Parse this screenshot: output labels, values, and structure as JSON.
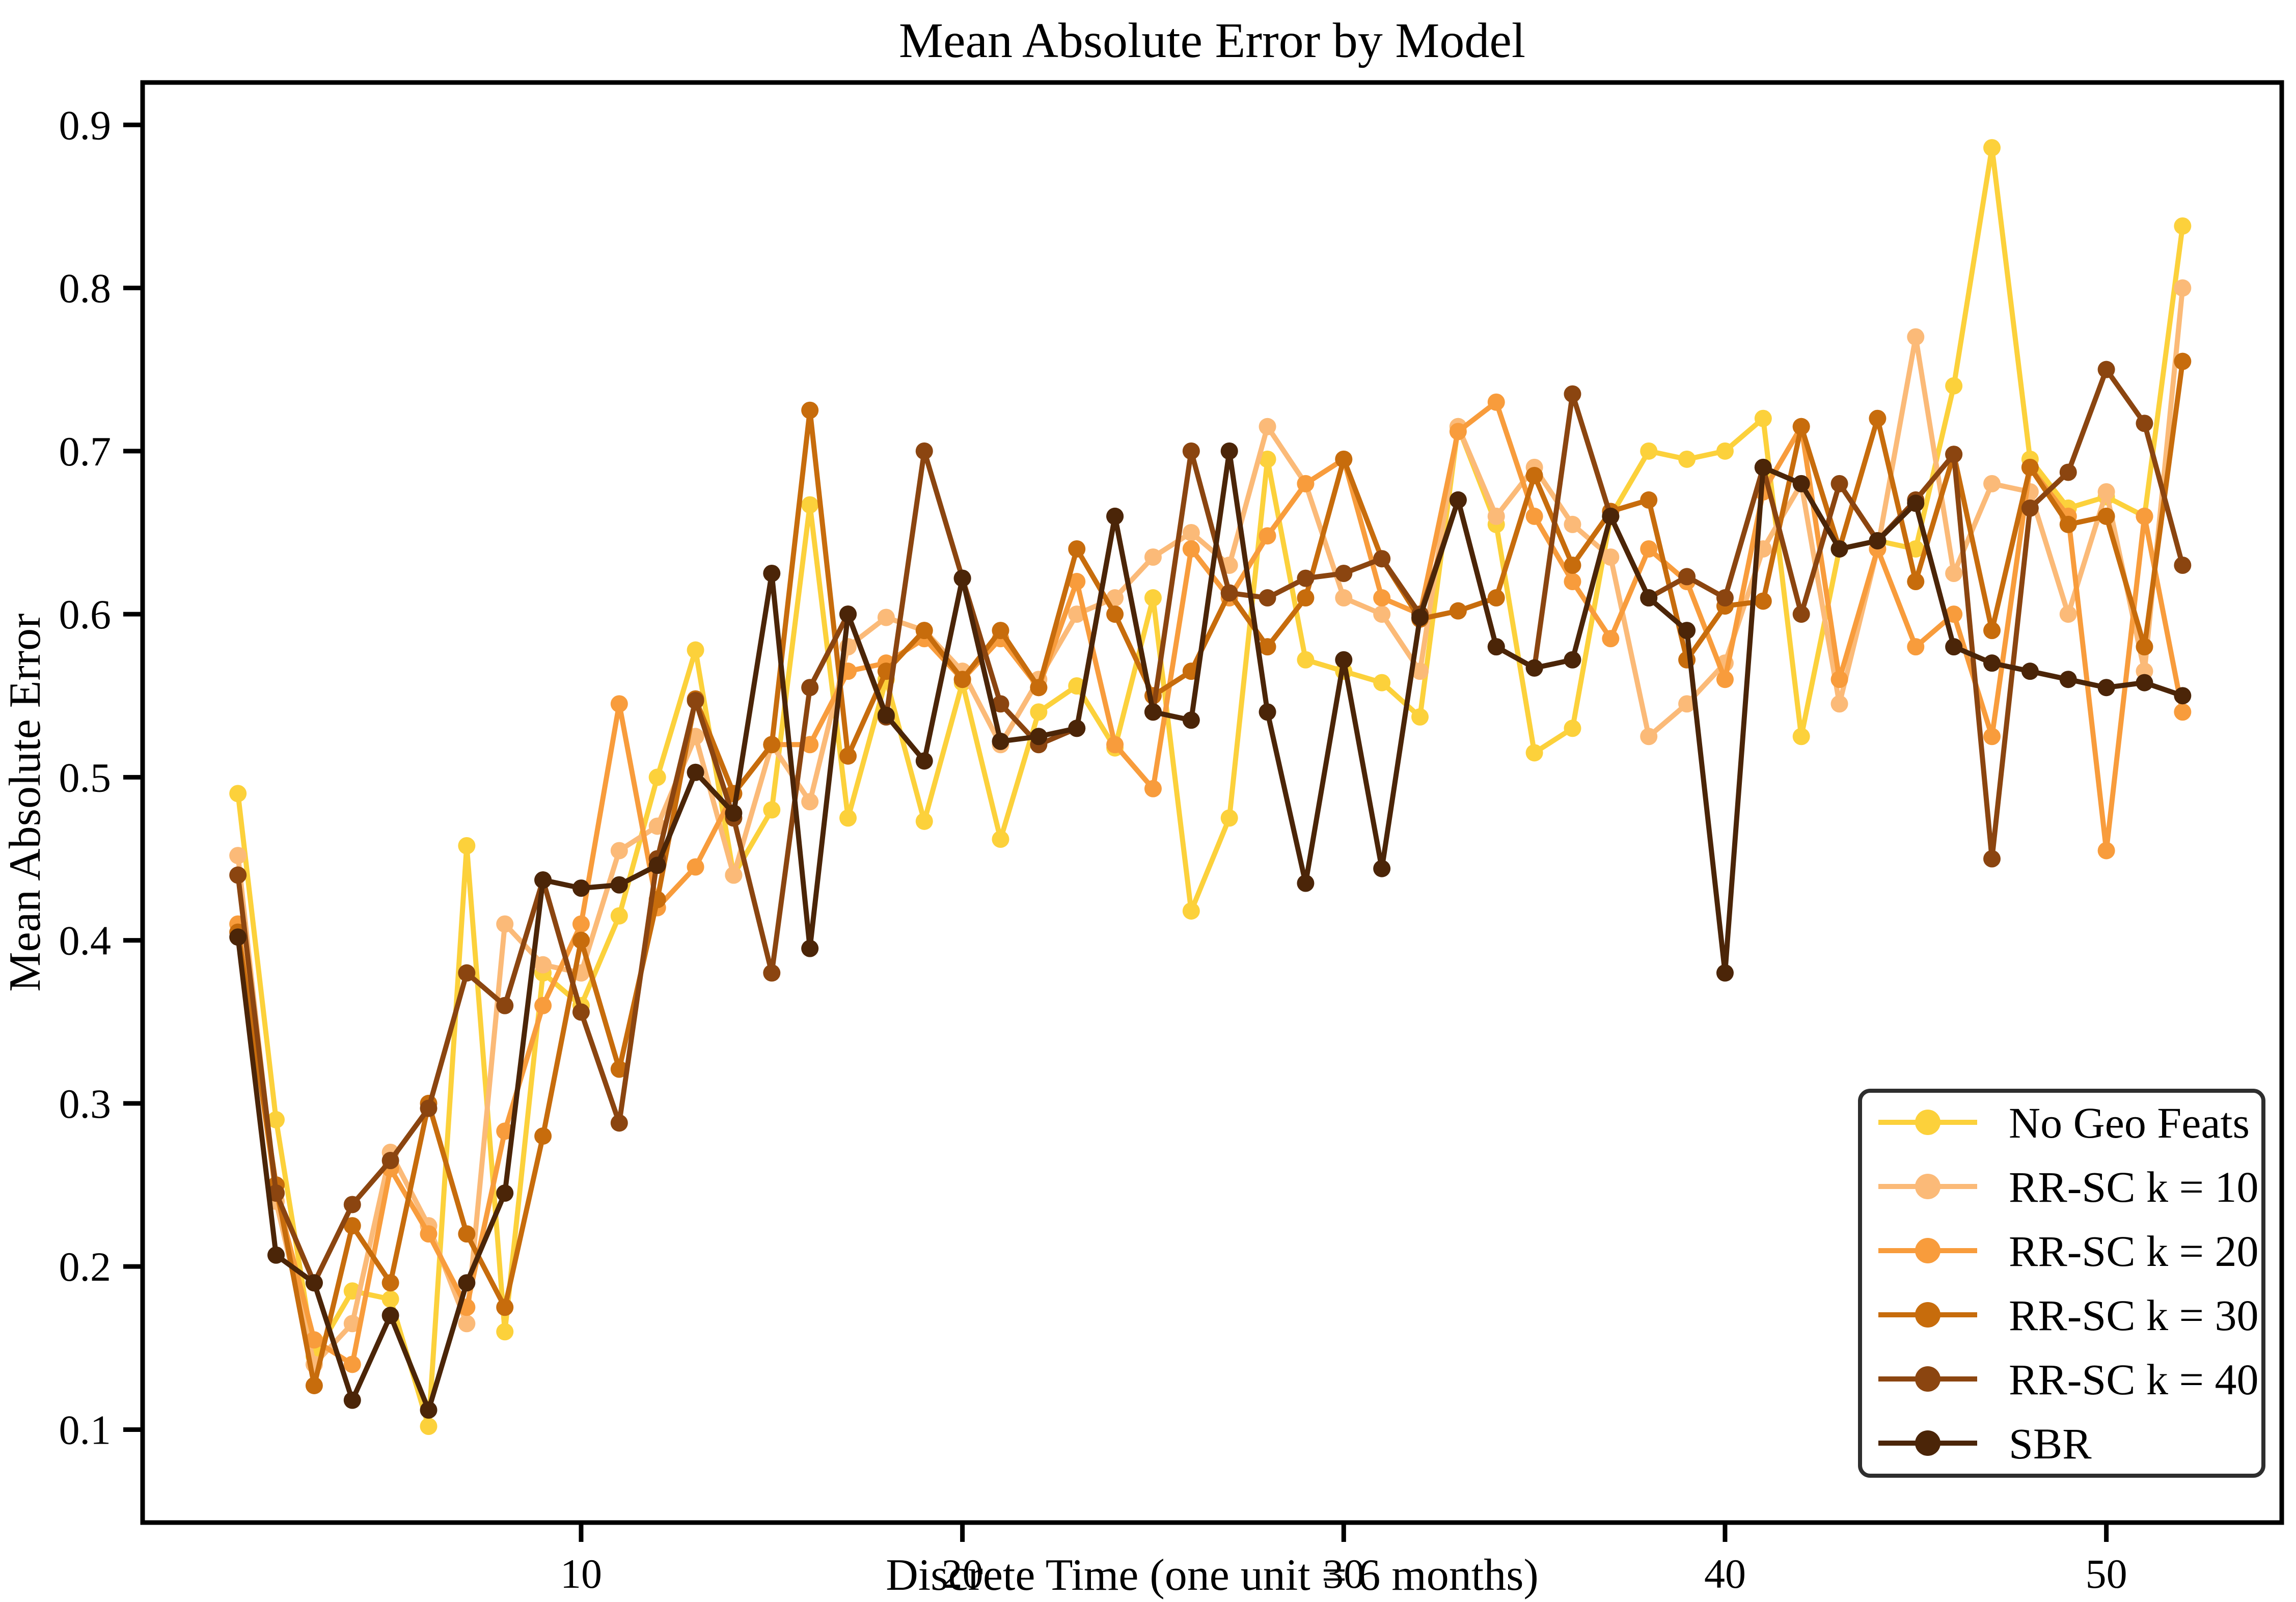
{
  "chart_data": {
    "type": "line",
    "title": "Mean Absolute Error by Model",
    "xlabel": "Discrete Time (one unit = 6 months)",
    "ylabel": "Mean Absolute Error",
    "grid": false,
    "marker": "circle",
    "legend_position": "lower right",
    "x_ticks": [
      10,
      20,
      30,
      40,
      50
    ],
    "y_ticks": [
      0.1,
      0.2,
      0.3,
      0.4,
      0.5,
      0.6,
      0.7,
      0.8,
      0.9
    ],
    "xlim": [
      -1.5,
      54.6
    ],
    "ylim": [
      0.043,
      0.926
    ],
    "x": [
      1,
      2,
      3,
      4,
      5,
      6,
      7,
      8,
      9,
      10,
      11,
      12,
      13,
      14,
      15,
      16,
      17,
      18,
      19,
      20,
      21,
      22,
      23,
      24,
      25,
      26,
      27,
      28,
      29,
      30,
      31,
      32,
      33,
      34,
      35,
      36,
      37,
      38,
      39,
      40,
      41,
      42,
      43,
      44,
      45,
      46,
      47,
      48,
      49,
      50,
      51,
      52
    ],
    "series": [
      {
        "name": "No Geo Feats",
        "color": "#FCD13B",
        "values": [
          0.49,
          0.29,
          0.145,
          0.185,
          0.18,
          0.102,
          0.458,
          0.16,
          0.38,
          0.36,
          0.415,
          0.5,
          0.578,
          0.44,
          0.48,
          0.667,
          0.475,
          0.56,
          0.473,
          0.558,
          0.462,
          0.54,
          0.556,
          0.518,
          0.61,
          0.418,
          0.475,
          0.695,
          0.572,
          0.565,
          0.558,
          0.537,
          0.715,
          0.655,
          0.515,
          0.53,
          0.66,
          0.7,
          0.695,
          0.7,
          0.72,
          0.525,
          0.64,
          0.645,
          0.64,
          0.74,
          0.886,
          0.695,
          0.665,
          0.672,
          0.66,
          0.838
        ]
      },
      {
        "name": "RR-SC k = 10",
        "color": "#FBBA78",
        "values": [
          0.452,
          0.24,
          0.14,
          0.165,
          0.27,
          0.225,
          0.165,
          0.41,
          0.385,
          0.38,
          0.455,
          0.47,
          0.525,
          0.44,
          0.52,
          0.485,
          0.58,
          0.598,
          0.59,
          0.565,
          0.52,
          0.56,
          0.6,
          0.61,
          0.635,
          0.65,
          0.63,
          0.715,
          0.68,
          0.61,
          0.6,
          0.565,
          0.715,
          0.66,
          0.69,
          0.655,
          0.635,
          0.525,
          0.545,
          0.57,
          0.64,
          0.68,
          0.545,
          0.64,
          0.77,
          0.625,
          0.68,
          0.675,
          0.6,
          0.675,
          0.565,
          0.8
        ]
      },
      {
        "name": "RR-SC k = 20",
        "color": "#F89C3C",
        "values": [
          0.41,
          0.245,
          0.155,
          0.14,
          0.26,
          0.22,
          0.175,
          0.283,
          0.36,
          0.41,
          0.545,
          0.42,
          0.445,
          0.49,
          0.52,
          0.52,
          0.565,
          0.57,
          0.585,
          0.56,
          0.585,
          0.555,
          0.62,
          0.52,
          0.493,
          0.64,
          0.61,
          0.648,
          0.68,
          0.695,
          0.61,
          0.6,
          0.712,
          0.73,
          0.66,
          0.62,
          0.585,
          0.64,
          0.62,
          0.56,
          0.675,
          0.715,
          0.56,
          0.64,
          0.58,
          0.6,
          0.525,
          0.69,
          0.66,
          0.455,
          0.66,
          0.54
        ]
      },
      {
        "name": "RR-SC k = 30",
        "color": "#C76C0C",
        "values": [
          0.405,
          0.25,
          0.127,
          0.225,
          0.19,
          0.3,
          0.22,
          0.175,
          0.28,
          0.4,
          0.321,
          0.425,
          0.548,
          0.49,
          0.52,
          0.725,
          0.513,
          0.565,
          0.59,
          0.56,
          0.59,
          0.555,
          0.64,
          0.6,
          0.55,
          0.565,
          0.613,
          0.58,
          0.61,
          0.695,
          0.634,
          0.597,
          0.602,
          0.61,
          0.685,
          0.63,
          0.663,
          0.67,
          0.572,
          0.605,
          0.608,
          0.715,
          0.64,
          0.72,
          0.62,
          0.698,
          0.59,
          0.69,
          0.655,
          0.66,
          0.58,
          0.755
        ]
      },
      {
        "name": "RR-SC k = 40",
        "color": "#8B4510",
        "values": [
          0.44,
          0.245,
          0.19,
          0.238,
          0.265,
          0.297,
          0.38,
          0.36,
          0.437,
          0.356,
          0.288,
          0.45,
          0.547,
          0.475,
          0.38,
          0.555,
          0.6,
          0.537,
          0.7,
          0.622,
          0.545,
          0.52,
          0.53,
          0.66,
          0.54,
          0.7,
          0.613,
          0.61,
          0.622,
          0.625,
          0.634,
          0.6,
          0.67,
          0.58,
          0.567,
          0.735,
          0.66,
          0.61,
          0.623,
          0.61,
          0.69,
          0.6,
          0.68,
          0.645,
          0.67,
          0.698,
          0.45,
          0.665,
          0.687,
          0.75,
          0.717,
          0.63
        ]
      },
      {
        "name": "SBR",
        "color": "#4B2508",
        "values": [
          0.402,
          0.207,
          0.19,
          0.118,
          0.17,
          0.112,
          0.19,
          0.245,
          0.437,
          0.432,
          0.434,
          0.446,
          0.503,
          0.478,
          0.625,
          0.395,
          0.6,
          0.538,
          0.51,
          0.622,
          0.522,
          0.525,
          0.53,
          0.66,
          0.54,
          0.535,
          0.7,
          0.54,
          0.435,
          0.572,
          0.444,
          0.598,
          0.67,
          0.58,
          0.567,
          0.572,
          0.66,
          0.61,
          0.59,
          0.38,
          0.69,
          0.68,
          0.64,
          0.645,
          0.668,
          0.58,
          0.57,
          0.565,
          0.56,
          0.555,
          0.558,
          0.55
        ]
      }
    ],
    "style": {
      "axis_color": "#000000",
      "legend_border_color": "#2e2e2e",
      "background": "#ffffff"
    }
  }
}
